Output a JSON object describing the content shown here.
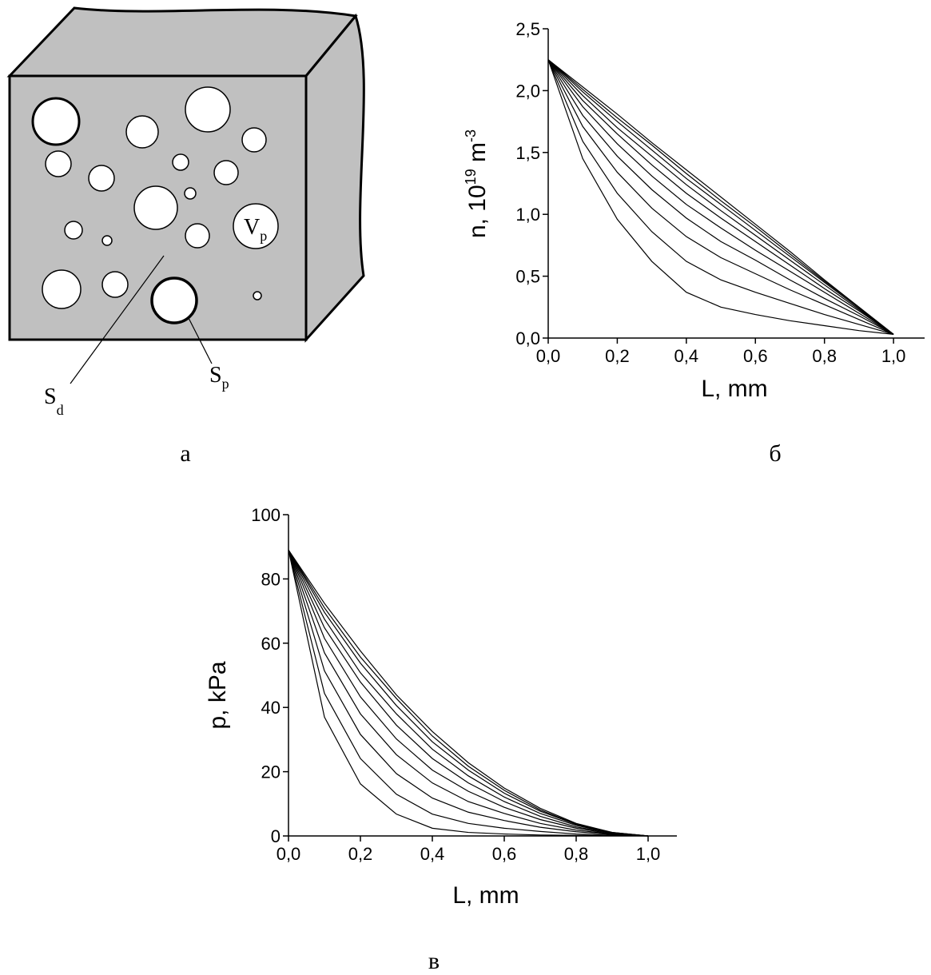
{
  "diagram": {
    "labels": [
      {
        "main": "V",
        "sub": "p"
      },
      {
        "main": "S",
        "sub": "d"
      },
      {
        "main": "S",
        "sub": "p"
      }
    ]
  },
  "panel_labels": [
    "а",
    "б",
    "в"
  ],
  "chart_data": [
    {
      "type": "line",
      "color": "#000000",
      "xlabel": "L, mm",
      "ylabel": [
        "n, 10",
        "19",
        " m",
        "-3"
      ],
      "xlim": [
        0,
        1.09
      ],
      "ylim": [
        0,
        2.5
      ],
      "xticks": [
        {
          "value": 0,
          "label": "0,0"
        },
        {
          "value": 0.2,
          "label": "0,2"
        },
        {
          "value": 0.4,
          "label": "0,4"
        },
        {
          "value": 0.6,
          "label": "0,6"
        },
        {
          "value": 0.8,
          "label": "0,8"
        },
        {
          "value": 1.0,
          "label": "1,0"
        }
      ],
      "yticks": [
        {
          "value": 0,
          "label": "0,0"
        },
        {
          "value": 0.5,
          "label": "0,5"
        },
        {
          "value": 1.0,
          "label": "1,0"
        },
        {
          "value": 1.5,
          "label": "1,5"
        },
        {
          "value": 2.0,
          "label": "2,0"
        },
        {
          "value": 2.5,
          "label": "2,5"
        }
      ],
      "x": [
        0,
        0.1,
        0.2,
        0.3,
        0.4,
        0.5,
        0.6,
        0.7,
        0.8,
        0.9,
        1.0
      ],
      "series": [
        {
          "values": [
            2.25,
            1.45,
            0.96,
            0.62,
            0.37,
            0.25,
            0.19,
            0.14,
            0.1,
            0.06,
            0.03
          ]
        },
        {
          "values": [
            2.25,
            1.59,
            1.17,
            0.86,
            0.62,
            0.47,
            0.37,
            0.28,
            0.19,
            0.11,
            0.03
          ]
        },
        {
          "values": [
            2.25,
            1.71,
            1.34,
            1.05,
            0.82,
            0.65,
            0.52,
            0.39,
            0.27,
            0.15,
            0.03
          ]
        },
        {
          "values": [
            2.25,
            1.8,
            1.47,
            1.2,
            0.97,
            0.78,
            0.63,
            0.47,
            0.32,
            0.18,
            0.03
          ]
        },
        {
          "values": [
            2.25,
            1.87,
            1.57,
            1.31,
            1.08,
            0.89,
            0.71,
            0.54,
            0.37,
            0.2,
            0.03
          ]
        },
        {
          "values": [
            2.25,
            1.92,
            1.65,
            1.4,
            1.17,
            0.97,
            0.78,
            0.59,
            0.4,
            0.22,
            0.03
          ]
        },
        {
          "values": [
            2.25,
            1.96,
            1.7,
            1.47,
            1.24,
            1.03,
            0.83,
            0.63,
            0.43,
            0.23,
            0.03
          ]
        },
        {
          "values": [
            2.25,
            1.99,
            1.75,
            1.52,
            1.29,
            1.08,
            0.87,
            0.66,
            0.45,
            0.24,
            0.03
          ]
        },
        {
          "values": [
            2.25,
            2.01,
            1.78,
            1.56,
            1.33,
            1.11,
            0.9,
            0.68,
            0.46,
            0.25,
            0.03
          ]
        },
        {
          "values": [
            2.25,
            2.03,
            1.81,
            1.58,
            1.36,
            1.14,
            0.92,
            0.7,
            0.47,
            0.25,
            0.03
          ]
        }
      ]
    },
    {
      "type": "line",
      "color": "#000000",
      "xlabel": "L, mm",
      "ylabel": [
        "p, kPa"
      ],
      "xlim": [
        0,
        1.08
      ],
      "ylim": [
        0,
        100
      ],
      "xticks": [
        {
          "value": 0,
          "label": "0,0"
        },
        {
          "value": 0.2,
          "label": "0,2"
        },
        {
          "value": 0.4,
          "label": "0,4"
        },
        {
          "value": 0.6,
          "label": "0,6"
        },
        {
          "value": 0.8,
          "label": "0,8"
        },
        {
          "value": 1.0,
          "label": "1,0"
        }
      ],
      "yticks": [
        0,
        20,
        40,
        60,
        80,
        100
      ],
      "x": [
        0,
        0.1,
        0.2,
        0.3,
        0.4,
        0.5,
        0.6,
        0.7,
        0.8,
        0.9,
        1.0
      ],
      "series": [
        {
          "values": [
            89,
            37.0,
            16.2,
            6.8,
            2.4,
            1.1,
            0.6,
            0.3,
            0.2,
            0.1,
            0
          ]
        },
        {
          "values": [
            89,
            44.4,
            24.1,
            13.0,
            6.8,
            3.9,
            2.4,
            1.4,
            0.6,
            0.2,
            0
          ]
        },
        {
          "values": [
            89,
            51.4,
            31.6,
            19.4,
            11.8,
            7.4,
            4.8,
            2.7,
            1.3,
            0.4,
            0
          ]
        },
        {
          "values": [
            89,
            57.0,
            38.0,
            25.3,
            16.5,
            10.7,
            7.0,
            3.9,
            1.8,
            0.6,
            0
          ]
        },
        {
          "values": [
            89,
            61.5,
            43.3,
            30.2,
            20.5,
            13.9,
            8.9,
            5.1,
            2.4,
            0.7,
            0
          ]
        },
        {
          "values": [
            89,
            64.8,
            47.9,
            34.5,
            24.1,
            16.5,
            10.7,
            6.1,
            2.8,
            0.9,
            0
          ]
        },
        {
          "values": [
            89,
            67.5,
            50.8,
            38.0,
            27.0,
            18.7,
            12.1,
            7.0,
            3.3,
            0.9,
            0
          ]
        },
        {
          "values": [
            89,
            69.6,
            53.8,
            40.6,
            29.3,
            20.5,
            13.3,
            7.7,
            3.6,
            1.0,
            0
          ]
        },
        {
          "values": [
            89,
            71.0,
            55.7,
            42.8,
            31.1,
            21.7,
            14.2,
            8.1,
            3.7,
            1.1,
            0
          ]
        },
        {
          "values": [
            89,
            72.4,
            57.6,
            43.9,
            32.5,
            22.8,
            14.9,
            8.6,
            3.9,
            1.1,
            0
          ]
        }
      ]
    }
  ]
}
